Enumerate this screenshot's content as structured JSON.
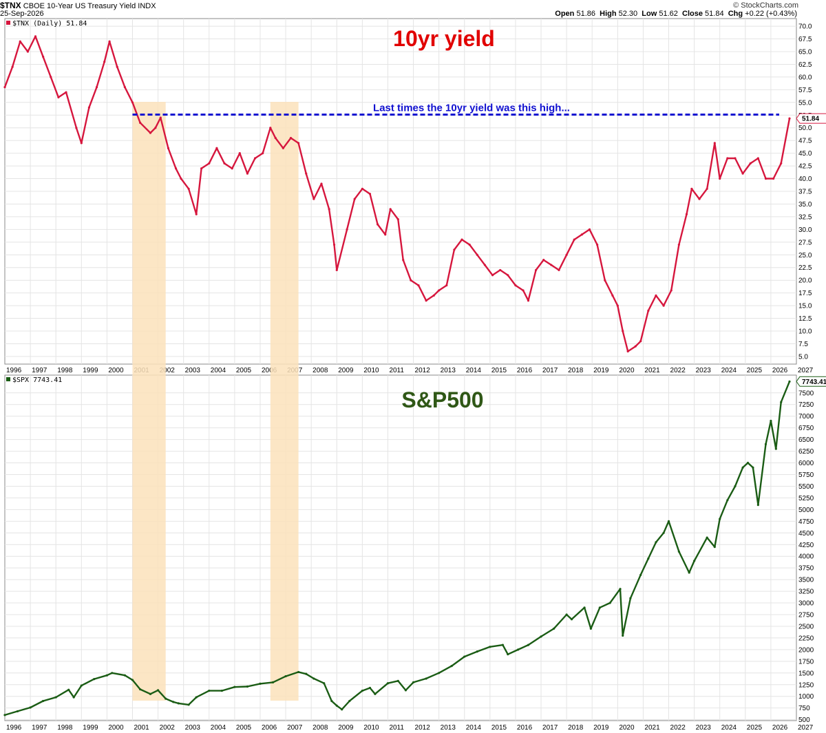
{
  "header": {
    "symbol": "$TNX",
    "description": "CBOE 10-Year US Treasury Yield",
    "exchange": "INDX",
    "date": "25-Sep-2026",
    "credit": "© StockCharts.com",
    "ohlc": {
      "open_label": "Open",
      "open": "51.86",
      "high_label": "High",
      "high": "52.30",
      "low_label": "Low",
      "low": "51.62",
      "close_label": "Close",
      "close": "51.84",
      "chg_label": "Chg",
      "chg": "+0.22 (+0.43%)"
    }
  },
  "colors": {
    "yield": "#d6163d",
    "spx": "#1a5c14",
    "guide": "#1010d0",
    "highlight": "#fbe2bb",
    "title_red": "#e10000",
    "title_green": "#2f5716"
  },
  "chart_data": [
    {
      "type": "line",
      "legend": "$TNX (Daily) 51.84",
      "title": "10yr yield",
      "annotation": "Last times the 10yr yield was this high...",
      "last_value_label": "51.84",
      "xlim": [
        1996.0,
        2027.0
      ],
      "ylim": [
        3.5,
        71.5
      ],
      "x_ticks": [
        "1996",
        "1997",
        "1998",
        "1999",
        "2000",
        "2001",
        "2002",
        "2003",
        "2004",
        "2005",
        "2006",
        "2007",
        "2008",
        "2009",
        "2010",
        "2011",
        "2012",
        "2013",
        "2014",
        "2015",
        "2016",
        "2017",
        "2018",
        "2019",
        "2020",
        "2021",
        "2022",
        "2023",
        "2024",
        "2025",
        "2026",
        "2027"
      ],
      "y_ticks": [
        "5.0",
        "7.5",
        "10.0",
        "12.5",
        "15.0",
        "17.5",
        "20.0",
        "22.5",
        "25.0",
        "27.5",
        "30.0",
        "32.5",
        "35.0",
        "37.5",
        "40.0",
        "42.5",
        "45.0",
        "47.5",
        "50.0",
        "52.5",
        "55.0",
        "57.5",
        "60.0",
        "62.5",
        "65.0",
        "67.5",
        "70.0"
      ],
      "reference_level": 52.6,
      "highlight_ranges": [
        [
          2001.0,
          2002.3
        ],
        [
          2006.4,
          2007.5
        ]
      ],
      "x": [
        1996.0,
        1996.3,
        1996.6,
        1996.9,
        1997.2,
        1997.5,
        1997.8,
        1998.1,
        1998.4,
        1998.8,
        1999.0,
        1999.3,
        1999.6,
        1999.9,
        2000.1,
        2000.4,
        2000.7,
        2001.0,
        2001.3,
        2001.7,
        2001.9,
        2002.1,
        2002.4,
        2002.7,
        2002.9,
        2003.2,
        2003.5,
        2003.7,
        2004.0,
        2004.3,
        2004.6,
        2004.9,
        2005.2,
        2005.5,
        2005.8,
        2006.1,
        2006.4,
        2006.6,
        2006.9,
        2007.2,
        2007.5,
        2007.8,
        2008.1,
        2008.4,
        2008.7,
        2008.9,
        2009.0,
        2009.4,
        2009.7,
        2010.0,
        2010.3,
        2010.6,
        2010.9,
        2011.1,
        2011.4,
        2011.6,
        2011.9,
        2012.2,
        2012.5,
        2012.8,
        2013.0,
        2013.3,
        2013.6,
        2013.9,
        2014.2,
        2014.5,
        2014.8,
        2015.1,
        2015.4,
        2015.7,
        2016.0,
        2016.3,
        2016.5,
        2016.8,
        2017.1,
        2017.4,
        2017.7,
        2018.0,
        2018.3,
        2018.6,
        2018.9,
        2019.2,
        2019.5,
        2019.8,
        2020.0,
        2020.2,
        2020.4,
        2020.7,
        2020.9,
        2021.2,
        2021.5,
        2021.8,
        2022.1,
        2022.4,
        2022.7,
        2022.9,
        2023.2,
        2023.5,
        2023.8,
        2024.0,
        2024.3,
        2024.6,
        2024.9,
        2025.2,
        2025.5,
        2025.8,
        2026.1,
        2026.4,
        2026.73
      ],
      "y": [
        58.0,
        62.0,
        67.0,
        65.0,
        68.0,
        64.0,
        60.0,
        56.0,
        57.0,
        50.0,
        47.0,
        54.0,
        58.0,
        63.0,
        67.0,
        62.0,
        58.0,
        55.0,
        51.0,
        49.0,
        50.0,
        52.0,
        46.0,
        42.0,
        40.0,
        38.0,
        33.0,
        42.0,
        43.0,
        46.0,
        43.0,
        42.0,
        45.0,
        41.0,
        44.0,
        45.0,
        50.0,
        48.0,
        46.0,
        48.0,
        47.0,
        41.0,
        36.0,
        39.0,
        34.0,
        27.0,
        22.0,
        30.0,
        36.0,
        38.0,
        37.0,
        31.0,
        29.0,
        34.0,
        32.0,
        24.0,
        20.0,
        19.0,
        16.0,
        17.0,
        18.0,
        19.0,
        26.0,
        28.0,
        27.0,
        25.0,
        23.0,
        21.0,
        22.0,
        21.0,
        19.0,
        18.0,
        16.0,
        22.0,
        24.0,
        23.0,
        22.0,
        25.0,
        28.0,
        29.0,
        30.0,
        27.0,
        20.0,
        17.0,
        15.0,
        10.0,
        6.0,
        7.0,
        8.0,
        14.0,
        17.0,
        15.0,
        18.0,
        27.0,
        33.0,
        38.0,
        36.0,
        38.0,
        47.0,
        40.0,
        44.0,
        44.0,
        41.0,
        43.0,
        44.0,
        40.0,
        40.0,
        43.0,
        51.84
      ]
    },
    {
      "type": "line",
      "legend": "$SPX 7743.41",
      "title": "S&P500",
      "last_value_label": "7743.41",
      "xlim": [
        1996.0,
        2027.0
      ],
      "ylim": [
        480,
        7880
      ],
      "x_ticks": [
        "1996",
        "1997",
        "1998",
        "1999",
        "2000",
        "2001",
        "2002",
        "2003",
        "2004",
        "2005",
        "2006",
        "2007",
        "2008",
        "2009",
        "2010",
        "2011",
        "2012",
        "2013",
        "2014",
        "2015",
        "2016",
        "2017",
        "2018",
        "2019",
        "2020",
        "2021",
        "2022",
        "2023",
        "2024",
        "2025",
        "2026",
        "2027"
      ],
      "y_ticks": [
        "500",
        "750",
        "1000",
        "1250",
        "1500",
        "1750",
        "2000",
        "2250",
        "2500",
        "2750",
        "3000",
        "3250",
        "3500",
        "3750",
        "4000",
        "4250",
        "4500",
        "4750",
        "5000",
        "5250",
        "5500",
        "5750",
        "6000",
        "6250",
        "6500",
        "6750",
        "7000",
        "7250",
        "7500"
      ],
      "x": [
        1996.0,
        1996.5,
        1997.0,
        1997.5,
        1998.0,
        1998.5,
        1998.7,
        1999.0,
        1999.5,
        2000.0,
        2000.2,
        2000.7,
        2001.0,
        2001.3,
        2001.7,
        2002.0,
        2002.3,
        2002.6,
        2002.8,
        2003.2,
        2003.5,
        2004.0,
        2004.5,
        2005.0,
        2005.5,
        2006.0,
        2006.5,
        2007.0,
        2007.5,
        2007.8,
        2008.1,
        2008.5,
        2008.8,
        2009.0,
        2009.2,
        2009.5,
        2010.0,
        2010.3,
        2010.5,
        2011.0,
        2011.4,
        2011.7,
        2012.0,
        2012.5,
        2013.0,
        2013.5,
        2014.0,
        2014.5,
        2015.0,
        2015.5,
        2015.7,
        2016.1,
        2016.5,
        2017.0,
        2017.5,
        2018.0,
        2018.2,
        2018.7,
        2018.95,
        2019.3,
        2019.7,
        2020.1,
        2020.2,
        2020.5,
        2020.9,
        2021.2,
        2021.5,
        2021.8,
        2022.0,
        2022.4,
        2022.8,
        2023.0,
        2023.5,
        2023.8,
        2024.0,
        2024.3,
        2024.6,
        2024.9,
        2025.1,
        2025.3,
        2025.5,
        2025.8,
        2026.0,
        2026.2,
        2026.4,
        2026.73
      ],
      "y": [
        600,
        680,
        760,
        900,
        980,
        1140,
        980,
        1230,
        1370,
        1450,
        1500,
        1450,
        1350,
        1150,
        1050,
        1130,
        950,
        880,
        850,
        820,
        980,
        1120,
        1120,
        1200,
        1210,
        1270,
        1300,
        1430,
        1520,
        1480,
        1380,
        1280,
        900,
        800,
        720,
        900,
        1120,
        1180,
        1050,
        1280,
        1330,
        1130,
        1300,
        1380,
        1500,
        1650,
        1850,
        1960,
        2060,
        2100,
        1900,
        2000,
        2100,
        2280,
        2450,
        2750,
        2650,
        2900,
        2450,
        2900,
        3000,
        3300,
        2300,
        3100,
        3600,
        3950,
        4300,
        4500,
        4750,
        4100,
        3650,
        3900,
        4400,
        4200,
        4800,
        5200,
        5500,
        5900,
        6000,
        5900,
        5100,
        6400,
        6900,
        6300,
        7300,
        7743
      ]
    }
  ]
}
